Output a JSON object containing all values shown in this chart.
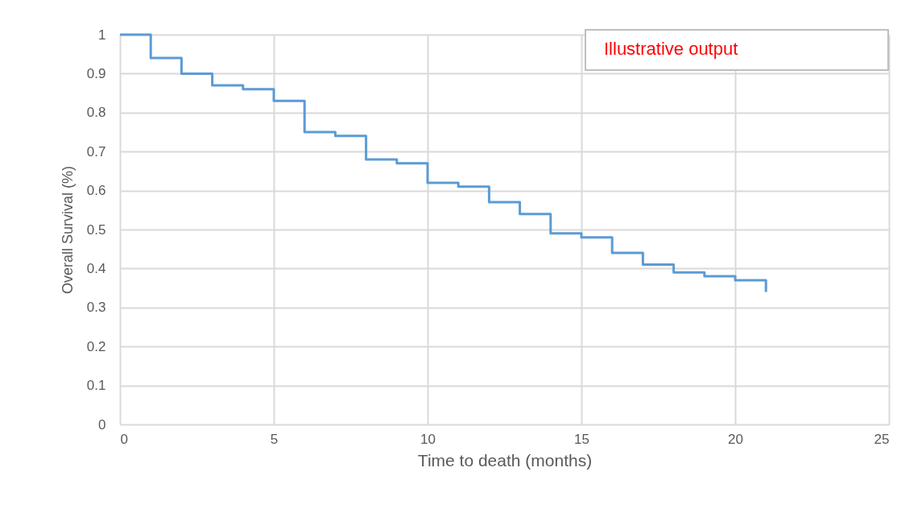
{
  "chart_data": {
    "type": "step",
    "xlabel": "Time to death  (months)",
    "ylabel": "Overall Survival (%)",
    "annotations": [
      "Illustrative output"
    ],
    "x": [
      0,
      1,
      2,
      3,
      4,
      5,
      6,
      7,
      8,
      9,
      10,
      11,
      12,
      13,
      14,
      15,
      16,
      17,
      18,
      19,
      20,
      21
    ],
    "series": [
      {
        "color": "#5b9bd5",
        "values": [
          1,
          0.94,
          0.9,
          0.87,
          0.86,
          0.83,
          0.75,
          0.74,
          0.68,
          0.67,
          0.62,
          0.61,
          0.57,
          0.54,
          0.49,
          0.48,
          0.44,
          0.41,
          0.39,
          0.38,
          0.37,
          0.34
        ]
      }
    ],
    "xlim": [
      0,
      25
    ],
    "xticks": [
      0,
      5,
      10,
      15,
      20,
      25
    ],
    "ylim": [
      0,
      1
    ],
    "yticks": [
      0,
      0.1,
      0.2,
      0.3,
      0.4,
      0.5,
      0.6,
      0.7,
      0.8,
      0.9,
      1
    ],
    "grid": true,
    "marker": "none",
    "line_style": "solid"
  }
}
